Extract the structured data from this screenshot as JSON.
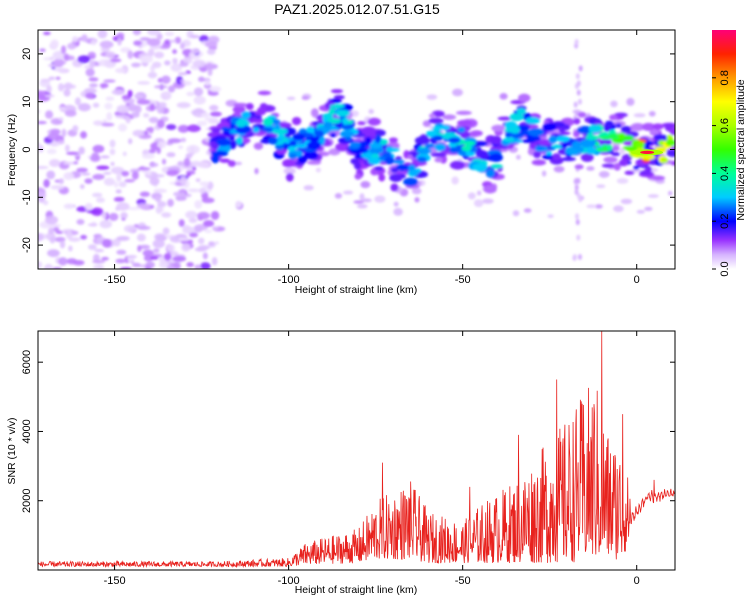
{
  "figure": {
    "title": "PAZ1.2025.012.07.51.G15"
  },
  "chart_data": [
    {
      "type": "heatmap",
      "xlabel": "Height of straight line (km)",
      "ylabel": "Frequency (Hz)",
      "xlim": [
        -172,
        11
      ],
      "ylim": [
        -25,
        25
      ],
      "x_ticks": [
        -150,
        -100,
        -50,
        0
      ],
      "y_ticks": [
        -20,
        -10,
        0,
        10,
        20
      ],
      "colorbar": {
        "label": "Normalized spectral amplitude",
        "range": [
          0,
          1
        ],
        "ticks": [
          0.0,
          0.2,
          0.4,
          0.6,
          0.8
        ],
        "colormap": [
          "#ffffff",
          "#cc99ff",
          "#8800ff",
          "#0000ff",
          "#00ccff",
          "#00ff66",
          "#aaff00",
          "#ffff00",
          "#ff8800",
          "#ff0000",
          "#ff0077"
        ]
      },
      "ridge": [
        {
          "x": -118,
          "f": 2,
          "a": 0.3
        },
        {
          "x": -108,
          "f": 7,
          "a": 0.4
        },
        {
          "x": -100,
          "f": 0,
          "a": 0.35
        },
        {
          "x": -93,
          "f": 2,
          "a": 0.3
        },
        {
          "x": -86,
          "f": 8,
          "a": 0.45
        },
        {
          "x": -80,
          "f": 0,
          "a": 0.3
        },
        {
          "x": -72,
          "f": 0,
          "a": 0.35
        },
        {
          "x": -65,
          "f": -6,
          "a": 0.35
        },
        {
          "x": -58,
          "f": 3,
          "a": 0.35
        },
        {
          "x": -50,
          "f": 2,
          "a": 0.4
        },
        {
          "x": -43,
          "f": -4,
          "a": 0.35
        },
        {
          "x": -33,
          "f": 6,
          "a": 0.35
        },
        {
          "x": -26,
          "f": 1,
          "a": 0.35
        },
        {
          "x": -18,
          "f": 2,
          "a": 0.3
        },
        {
          "x": -10,
          "f": 2,
          "a": 0.45
        },
        {
          "x": -3,
          "f": 1,
          "a": 0.55
        },
        {
          "x": 2,
          "f": -1,
          "a": 0.95
        },
        {
          "x": 8,
          "f": 0,
          "a": 0.7
        }
      ]
    },
    {
      "type": "line",
      "xlabel": "Height of straight line (km)",
      "ylabel": "SNR (10 * v/v)",
      "xlim": [
        -172,
        11
      ],
      "ylim": [
        0,
        6900
      ],
      "x_ticks": [
        -150,
        -100,
        -50,
        0
      ],
      "y_ticks": [
        2000,
        4000,
        6000
      ],
      "color": "#e8221e",
      "envelope": [
        {
          "x": -172,
          "lo": 100,
          "hi": 250
        },
        {
          "x": -120,
          "lo": 100,
          "hi": 250
        },
        {
          "x": -100,
          "lo": 100,
          "hi": 350
        },
        {
          "x": -95,
          "lo": 150,
          "hi": 800
        },
        {
          "x": -80,
          "lo": 200,
          "hi": 1200
        },
        {
          "x": -75,
          "lo": 300,
          "hi": 2000
        },
        {
          "x": -65,
          "lo": 300,
          "hi": 2600
        },
        {
          "x": -60,
          "lo": 200,
          "hi": 1700
        },
        {
          "x": -50,
          "lo": 200,
          "hi": 1400
        },
        {
          "x": -45,
          "lo": 200,
          "hi": 1900
        },
        {
          "x": -35,
          "lo": 200,
          "hi": 2600
        },
        {
          "x": -25,
          "lo": 200,
          "hi": 3800
        },
        {
          "x": -20,
          "lo": 200,
          "hi": 4400
        },
        {
          "x": -12,
          "lo": 300,
          "hi": 5600
        },
        {
          "x": -8,
          "lo": 300,
          "hi": 4000
        },
        {
          "x": -4,
          "lo": 300,
          "hi": 3600
        },
        {
          "x": -1,
          "lo": 1200,
          "hi": 1800
        },
        {
          "x": 3,
          "lo": 1900,
          "hi": 2300
        },
        {
          "x": 11,
          "lo": 2000,
          "hi": 2400
        }
      ],
      "peaks": [
        {
          "x": -73,
          "y": 3100
        },
        {
          "x": -48,
          "y": 2400
        },
        {
          "x": -34,
          "y": 3900
        },
        {
          "x": -23,
          "y": 5500
        },
        {
          "x": -10,
          "y": 6900
        },
        {
          "x": -4,
          "y": 4500
        },
        {
          "x": 5,
          "y": 2600
        }
      ]
    }
  ]
}
